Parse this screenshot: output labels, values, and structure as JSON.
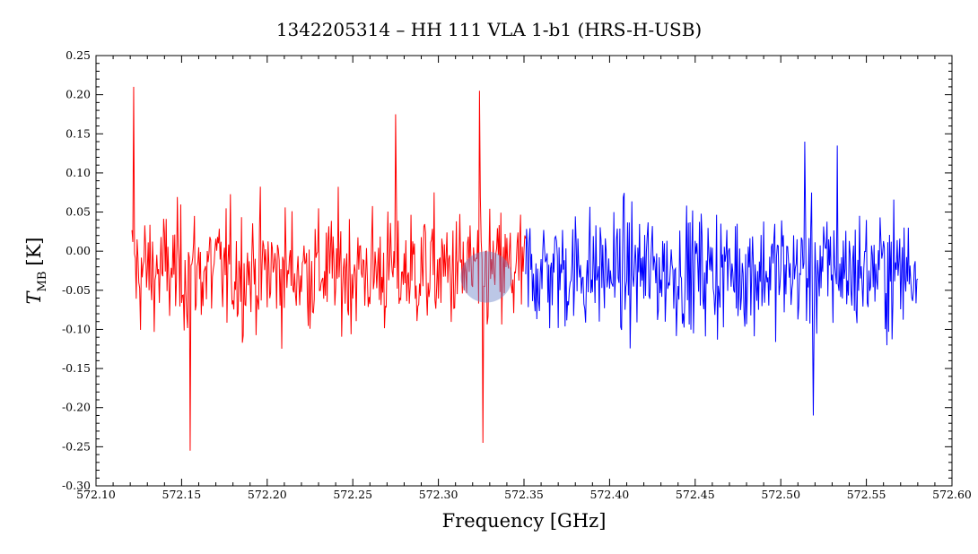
{
  "chart_data": {
    "type": "line",
    "title": "1342205314 – HH 111 VLA 1-b1 (HRS-H-USB)",
    "xlabel": "Frequency [GHz]",
    "ylabel": {
      "main": "T",
      "sub": "MB",
      "unit": "[K]"
    },
    "xlim": [
      572.1,
      572.6
    ],
    "ylim": [
      -0.3,
      0.25
    ],
    "xticks": [
      "572.10",
      "572.15",
      "572.20",
      "572.25",
      "572.30",
      "572.35",
      "572.40",
      "572.45",
      "572.50",
      "572.55",
      "572.60"
    ],
    "yticks": [
      "-0.30",
      "-0.25",
      "-0.20",
      "-0.15",
      "-0.10",
      "-0.05",
      "0.00",
      "0.05",
      "0.10",
      "0.15",
      "0.20",
      "0.25"
    ],
    "grid": false,
    "series": [
      {
        "color": "#ff0000",
        "x_range": [
          572.121,
          572.351
        ],
        "noise_amplitude": 0.1,
        "peaks": [
          [
            572.122,
            0.21
          ],
          [
            572.324,
            0.205
          ],
          [
            572.326,
            -0.245
          ],
          [
            572.155,
            -0.255
          ],
          [
            572.275,
            0.175
          ]
        ]
      },
      {
        "color": "#0000ff",
        "x_range": [
          572.351,
          572.58
        ],
        "noise_amplitude": 0.1,
        "peaks": [
          [
            572.514,
            0.14
          ],
          [
            572.533,
            0.135
          ],
          [
            572.519,
            -0.21
          ]
        ]
      }
    ],
    "highlight": {
      "x": 572.328,
      "y": -0.033,
      "radius_x": 0.015,
      "color": "#6a82c8"
    }
  }
}
